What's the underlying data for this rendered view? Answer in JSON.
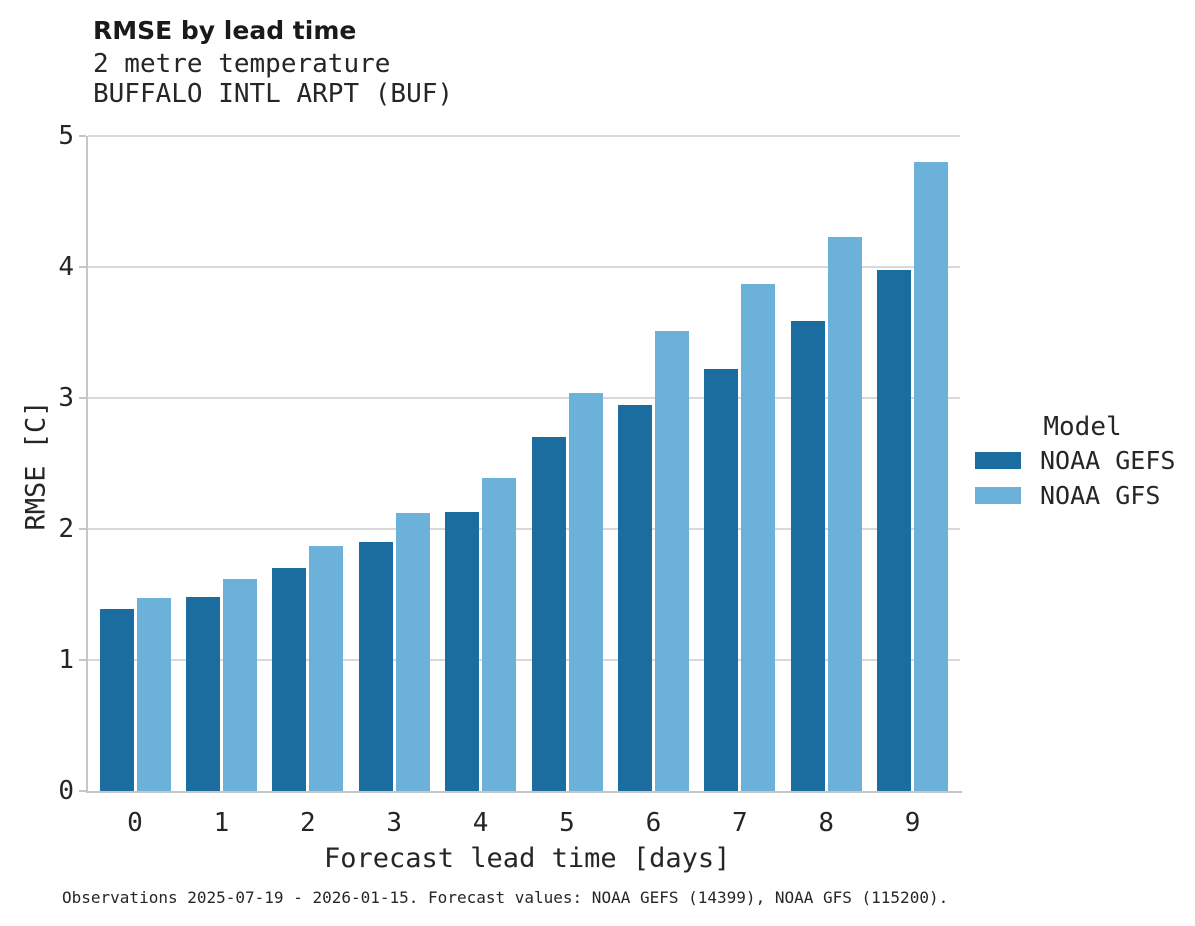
{
  "header": {
    "title": "RMSE by lead time",
    "subtitle": "2 metre temperature",
    "station": "BUFFALO INTL ARPT (BUF)"
  },
  "chart_data": {
    "type": "bar",
    "title": "RMSE by lead time",
    "subtitle": "2 metre temperature",
    "station": "BUFFALO INTL ARPT (BUF)",
    "categories": [
      "0",
      "1",
      "2",
      "3",
      "4",
      "5",
      "6",
      "7",
      "8",
      "9"
    ],
    "series": [
      {
        "name": "NOAA GEFS",
        "color": "#1a6d9e",
        "values": [
          1.39,
          1.48,
          1.7,
          1.9,
          2.13,
          2.7,
          2.95,
          3.22,
          3.59,
          3.98
        ]
      },
      {
        "name": "NOAA GFS",
        "color": "#6cb1da",
        "values": [
          1.47,
          1.62,
          1.87,
          2.12,
          2.39,
          3.04,
          3.51,
          3.87,
          4.23,
          4.8
        ]
      }
    ],
    "xlabel": "Forecast lead time [days]",
    "ylabel": "RMSE [C]",
    "ylim": [
      0,
      5
    ],
    "yticks": [
      "0",
      "1",
      "2",
      "3",
      "4",
      "5"
    ],
    "grid": "horizontal-major",
    "legend_title": "Model",
    "legend_position": "right-center"
  },
  "legend": {
    "title": "Model",
    "items": [
      {
        "label": "NOAA GEFS",
        "color": "#1a6d9e"
      },
      {
        "label": "NOAA GFS",
        "color": "#6cb1da"
      }
    ]
  },
  "footer": {
    "note": "Observations 2025-07-19 - 2026-01-15. Forecast values: NOAA GEFS (14399), NOAA GFS (115200)."
  },
  "colors": {
    "gefs_bar": "#1a6d9e",
    "gfs_bar": "#6cb1da",
    "gridline": "#d9d9d9",
    "spine": "#c6c6c6",
    "text": "#262626",
    "background": "#ffffff"
  }
}
